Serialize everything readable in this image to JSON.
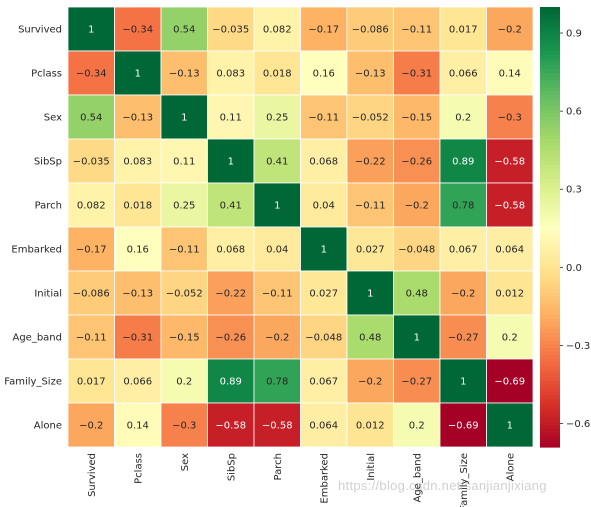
{
  "chart_data": {
    "type": "heatmap",
    "title": "",
    "xlabel": "",
    "ylabel": "",
    "labels": [
      "Survived",
      "Pclass",
      "Sex",
      "SibSp",
      "Parch",
      "Embarked",
      "Initial",
      "Age_band",
      "Family_Size",
      "Alone"
    ],
    "values": [
      [
        1,
        -0.34,
        0.54,
        -0.035,
        0.082,
        -0.17,
        -0.086,
        -0.11,
        0.017,
        -0.2
      ],
      [
        -0.34,
        1,
        -0.13,
        0.083,
        0.018,
        0.16,
        -0.13,
        -0.31,
        0.066,
        0.14
      ],
      [
        0.54,
        -0.13,
        1,
        0.11,
        0.25,
        -0.11,
        -0.052,
        -0.15,
        0.2,
        -0.3
      ],
      [
        -0.035,
        0.083,
        0.11,
        1,
        0.41,
        0.068,
        -0.22,
        -0.26,
        0.89,
        -0.58
      ],
      [
        0.082,
        0.018,
        0.25,
        0.41,
        1,
        0.04,
        -0.11,
        -0.2,
        0.78,
        -0.58
      ],
      [
        -0.17,
        0.16,
        -0.11,
        0.068,
        0.04,
        1,
        0.027,
        -0.048,
        0.067,
        0.064
      ],
      [
        -0.086,
        -0.13,
        -0.052,
        -0.22,
        -0.11,
        0.027,
        1,
        0.48,
        -0.2,
        0.012
      ],
      [
        -0.11,
        -0.31,
        -0.15,
        -0.26,
        -0.2,
        -0.048,
        0.48,
        1,
        -0.27,
        0.2
      ],
      [
        0.017,
        0.066,
        0.2,
        0.89,
        0.78,
        0.067,
        -0.2,
        -0.27,
        1,
        -0.69
      ],
      [
        -0.2,
        0.14,
        -0.3,
        -0.58,
        -0.58,
        0.064,
        0.012,
        0.2,
        -0.69,
        1
      ]
    ],
    "colormap": "RdYlGn",
    "vmin": -0.69,
    "vmax": 1,
    "colorbar_ticks": [
      {
        "value": 0.9,
        "label": "0.9"
      },
      {
        "value": 0.6,
        "label": "0.6"
      },
      {
        "value": 0.3,
        "label": "0.3"
      },
      {
        "value": 0.0,
        "label": "0.0"
      },
      {
        "value": -0.3,
        "label": "−0.3"
      },
      {
        "value": -0.6,
        "label": "−0.6"
      }
    ],
    "annotations": true,
    "grid": false
  },
  "watermark": "https://blog.csdn.net/sanjianjixiang"
}
